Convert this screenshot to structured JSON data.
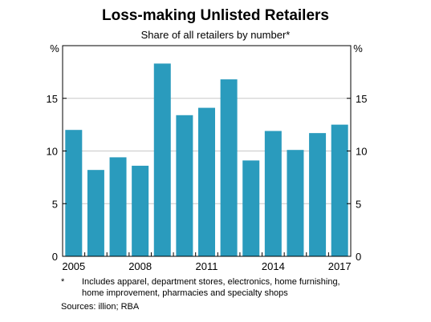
{
  "chart_data": {
    "type": "bar",
    "title": "Loss-making Unlisted Retailers",
    "subtitle": "Share of all retailers by number*",
    "ylabel_left": "%",
    "ylabel_right": "%",
    "ylim": [
      0,
      20
    ],
    "yticks": [
      "0",
      "5",
      "10",
      "15"
    ],
    "x": [
      2005,
      2006,
      2007,
      2008,
      2009,
      2010,
      2011,
      2012,
      2013,
      2014,
      2015,
      2016,
      2017
    ],
    "values": [
      12.0,
      8.2,
      9.4,
      8.6,
      18.3,
      13.4,
      14.1,
      16.8,
      9.1,
      11.9,
      10.1,
      11.7,
      12.5
    ],
    "xtick_labels": [
      "2005",
      "2008",
      "2011",
      "2014",
      "2017"
    ],
    "xtick_years": [
      2005,
      2008,
      2011,
      2014,
      2017
    ],
    "bar_color": "#2a9bbd",
    "grid": true
  },
  "footnotes": {
    "marker": "*",
    "line1": "Includes apparel, department stores, electronics, home furnishing,",
    "line2": "home improvement, pharmacies and specialty shops",
    "sources": "Sources:  illion; RBA"
  }
}
